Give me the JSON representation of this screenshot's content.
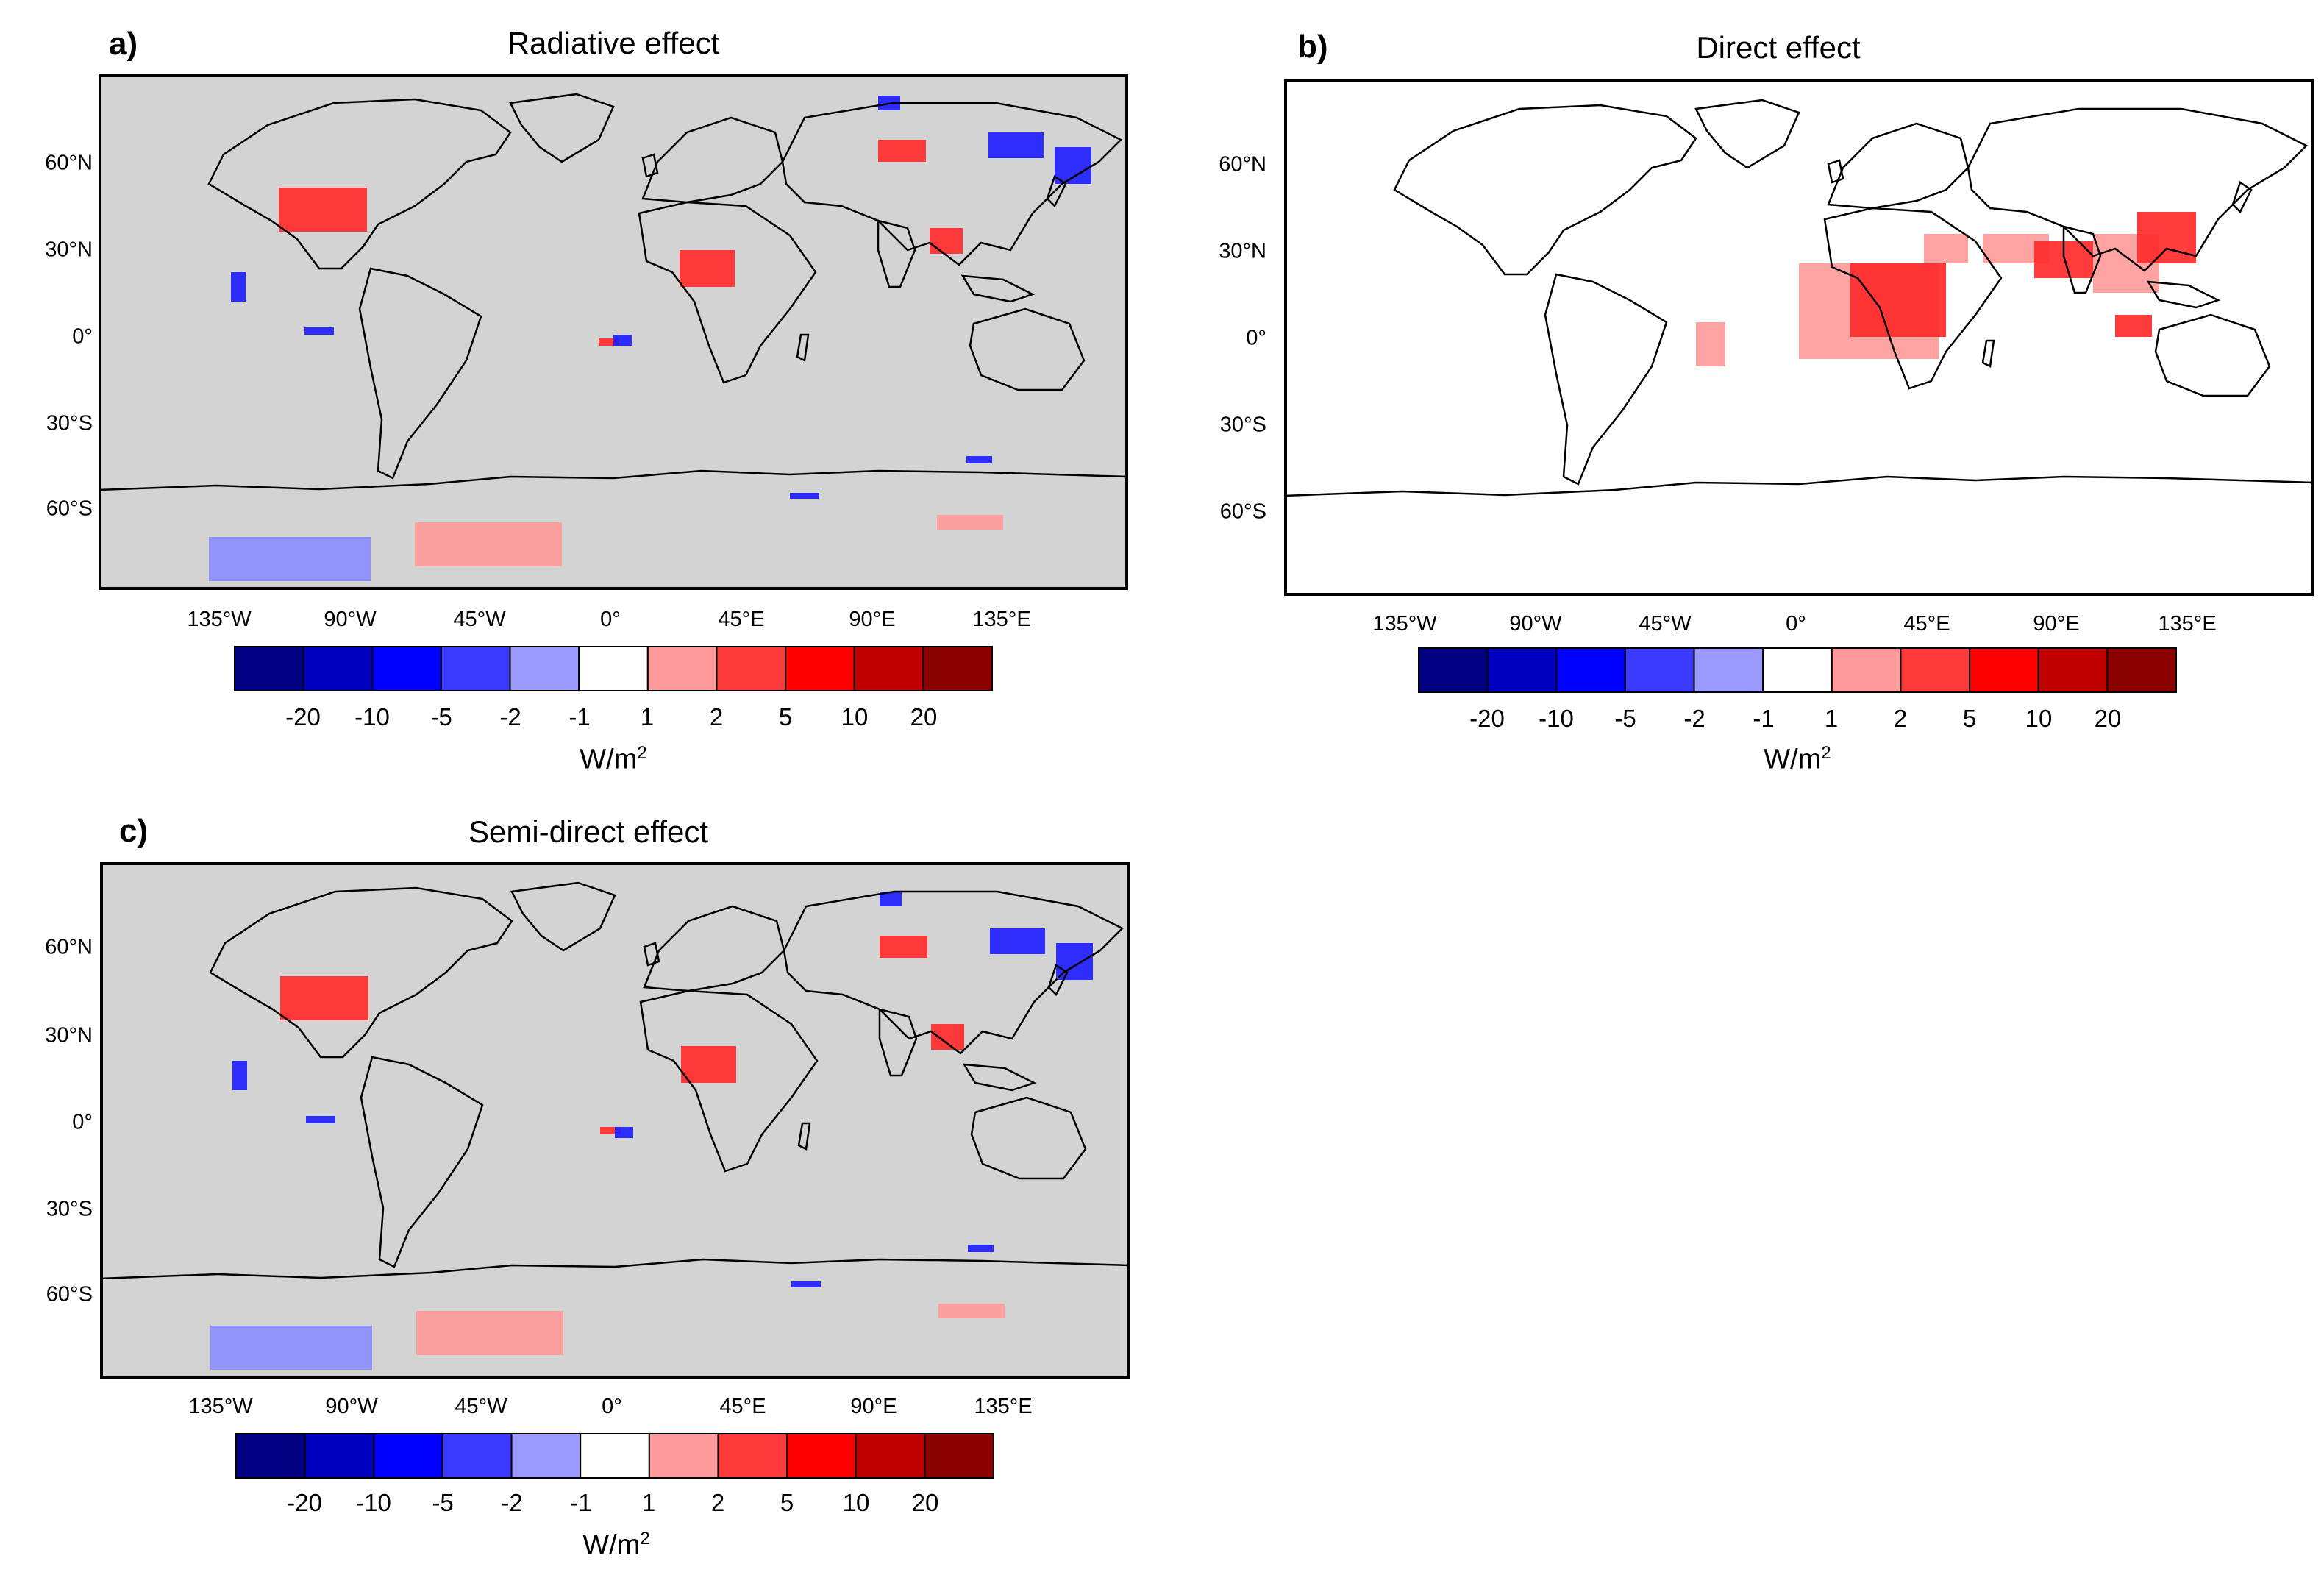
{
  "panels": [
    {
      "letter": "a)",
      "title": "Radiative effect",
      "background": "#d3d3d3",
      "lat_ticks": [
        "60°N",
        "30°N",
        "0°",
        "30°S",
        "60°S"
      ],
      "lon_ticks": [
        "135°W",
        "90°W",
        "45°W",
        "0°",
        "45°E",
        "90°E",
        "135°E"
      ],
      "colorbar_labels": [
        "-20",
        "-10",
        "-5",
        "-2",
        "-1",
        "1",
        "2",
        "5",
        "10",
        "20"
      ],
      "unit": "W/m",
      "unit_exp": "2"
    },
    {
      "letter": "b)",
      "title": "Direct effect",
      "background": "#ffffff",
      "lat_ticks": [
        "60°N",
        "30°N",
        "0°",
        "30°S",
        "60°S"
      ],
      "lon_ticks": [
        "135°W",
        "90°W",
        "45°W",
        "0°",
        "45°E",
        "90°E",
        "135°E"
      ],
      "colorbar_labels": [
        "-20",
        "-10",
        "-5",
        "-2",
        "-1",
        "1",
        "2",
        "5",
        "10",
        "20"
      ],
      "unit": "W/m",
      "unit_exp": "2"
    },
    {
      "letter": "c)",
      "title": "Semi-direct effect",
      "background": "#d3d3d3",
      "lat_ticks": [
        "60°N",
        "30°N",
        "0°",
        "30°S",
        "60°S"
      ],
      "lon_ticks": [
        "135°W",
        "90°W",
        "45°W",
        "0°",
        "45°E",
        "90°E",
        "135°E"
      ],
      "colorbar_labels": [
        "-20",
        "-10",
        "-5",
        "-2",
        "-1",
        "1",
        "2",
        "5",
        "10",
        "20"
      ],
      "unit": "W/m",
      "unit_exp": "2"
    }
  ],
  "colorbar_colors": [
    "#000080",
    "#0000c0",
    "#0000ff",
    "#3a3aff",
    "#9a9aff",
    "#ffffff",
    "#ff9a9a",
    "#ff3a3a",
    "#ff0000",
    "#c00000",
    "#8b0000"
  ],
  "colors": {
    "neg_strong": "#1f1fff",
    "neg_weak": "#8d8dff",
    "pos_strong": "#ff2a2a",
    "pos_weak": "#ff9a9a",
    "coast": "#000000"
  }
}
